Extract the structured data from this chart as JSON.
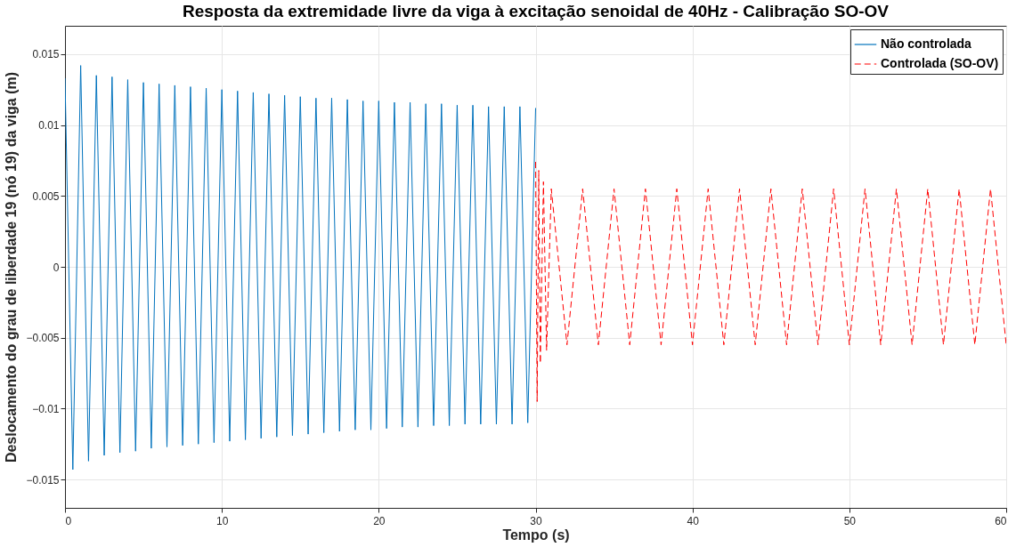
{
  "chart_data": {
    "type": "line",
    "title": "Resposta da extremidade livre da viga à excitação senoidal de 40Hz - Calibração SO-OV",
    "xlabel": "Tempo (s)",
    "ylabel": "Deslocamento do grau de liberdade 19 (nó 19) da viga (m)",
    "xlim": [
      0,
      60
    ],
    "xticks": [
      0,
      10,
      20,
      30,
      40,
      50,
      60
    ],
    "ylim": [
      -0.017,
      0.017
    ],
    "yticks": [
      -0.015,
      -0.01,
      -0.005,
      0,
      0.005,
      0.01,
      0.015
    ],
    "grid": true,
    "legend": "top right",
    "series": [
      {
        "name": "Não controlada",
        "color": "#0072bd",
        "line_style": "solid",
        "x": [
          0,
          0.5,
          1,
          1.5,
          2,
          2.5,
          3,
          3.5,
          4,
          4.5,
          5,
          5.5,
          6,
          6.5,
          7,
          7.5,
          8,
          8.5,
          9,
          9.5,
          10,
          10.5,
          11,
          11.5,
          12,
          12.5,
          13,
          13.5,
          14,
          14.5,
          15,
          15.5,
          16,
          16.5,
          17,
          17.5,
          18,
          18.5,
          19,
          19.5,
          20,
          20.5,
          21,
          21.5,
          22,
          22.5,
          23,
          23.5,
          24,
          24.5,
          25,
          25.5,
          26,
          26.5,
          27,
          27.5,
          28,
          28.5,
          29,
          29.5,
          30
        ],
        "values": [
          0.0133,
          -0.0143,
          0.0142,
          -0.0137,
          0.0135,
          -0.0133,
          0.0134,
          -0.0131,
          0.0132,
          -0.013,
          0.013,
          -0.0128,
          0.0129,
          -0.0127,
          0.0128,
          -0.0126,
          0.0127,
          -0.0125,
          0.0126,
          -0.0124,
          0.0125,
          -0.0123,
          0.0124,
          -0.0122,
          0.0123,
          -0.0121,
          0.0122,
          -0.012,
          0.0121,
          -0.0119,
          0.012,
          -0.0118,
          0.0119,
          -0.0117,
          0.0119,
          -0.0116,
          0.0118,
          -0.0115,
          0.0117,
          -0.0115,
          0.0117,
          -0.0114,
          0.0116,
          -0.0113,
          0.0116,
          -0.0113,
          0.0115,
          -0.0112,
          0.0115,
          -0.0112,
          0.0114,
          -0.0111,
          0.0114,
          -0.0111,
          0.0113,
          -0.0111,
          0.0113,
          -0.0111,
          0.0113,
          -0.011,
          0.0112
        ]
      },
      {
        "name": "Controlada (SO-OV)",
        "color": "#ff0000",
        "line_style": "dashed",
        "x": [
          30,
          30.1,
          30.2,
          30.3,
          30.5,
          30.7,
          31,
          32,
          33,
          34,
          35,
          36,
          37,
          38,
          39,
          40,
          41,
          42,
          43,
          44,
          45,
          46,
          47,
          48,
          49,
          50,
          51,
          52,
          53,
          54,
          55,
          56,
          57,
          58,
          59,
          60
        ],
        "values": [
          0.0074,
          -0.0095,
          0.0068,
          -0.0068,
          0.006,
          -0.0059,
          0.0055,
          -0.0055,
          0.0055,
          -0.0055,
          0.0055,
          -0.0055,
          0.0055,
          -0.0055,
          0.0055,
          -0.0055,
          0.0055,
          -0.0055,
          0.0055,
          -0.0055,
          0.0055,
          -0.0055,
          0.0055,
          -0.0055,
          0.0055,
          -0.0055,
          0.0055,
          -0.0055,
          0.0055,
          -0.0055,
          0.0055,
          -0.0055,
          0.0055,
          -0.0055,
          0.0055,
          -0.0055
        ]
      }
    ]
  }
}
